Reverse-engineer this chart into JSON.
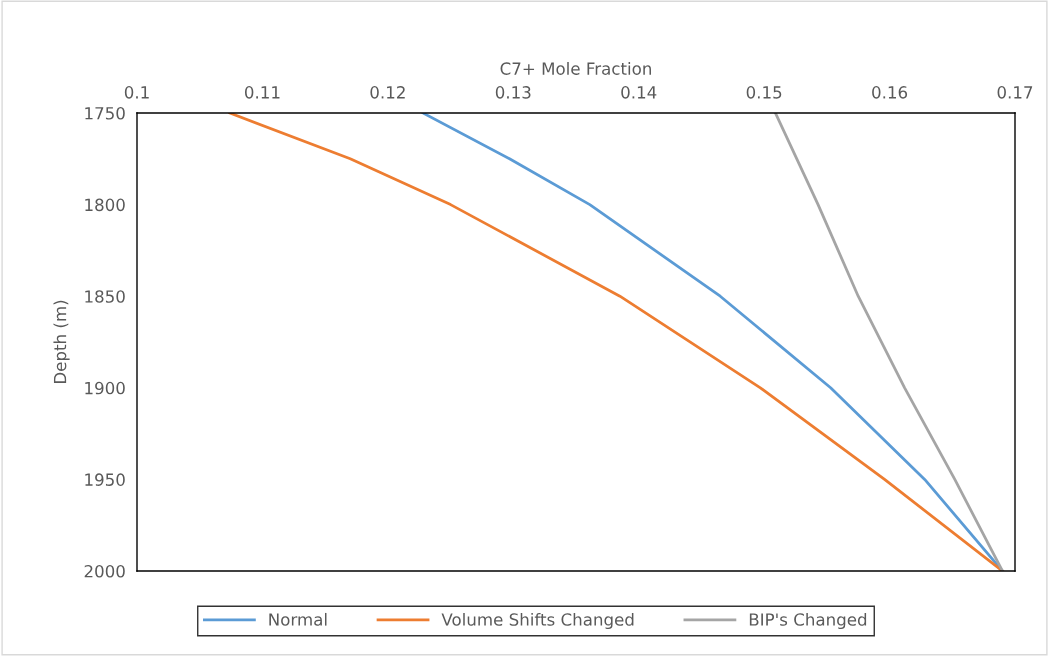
{
  "chart_data": {
    "type": "line",
    "xlabel": "C7+ Mole Fraction",
    "ylabel": "Depth (m)",
    "xlim": [
      0.1,
      0.17
    ],
    "xticks": [
      0.1,
      0.11,
      0.12,
      0.13,
      0.14,
      0.15,
      0.16,
      0.17
    ],
    "ylim": [
      2000,
      1750
    ],
    "yticks": [
      1750,
      1800,
      1850,
      1900,
      1950,
      2000
    ],
    "grid": false,
    "legend": "bottom",
    "marker": "none",
    "line_style": "solid",
    "series": [
      {
        "name": "Normal",
        "color": "#5b9bd5",
        "x": [
          0.1228,
          0.1297,
          0.1361,
          0.1465,
          0.1553,
          0.1628,
          0.169
        ],
        "values": [
          1750,
          1775,
          1800,
          1850,
          1900,
          1950,
          2000
        ]
      },
      {
        "name": "Volume Shifts Changed",
        "color": "#ed7d31",
        "x": [
          0.1074,
          0.117,
          0.125,
          0.1385,
          0.1497,
          0.1596,
          0.169
        ],
        "values": [
          1750,
          1775,
          1800,
          1850,
          1900,
          1950,
          2000
        ]
      },
      {
        "name": "BIP's Changed",
        "color": "#a5a5a5",
        "x": [
          0.1509,
          0.1543,
          0.1575,
          0.1612,
          0.1652,
          0.169
        ],
        "values": [
          1750,
          1800,
          1850,
          1900,
          1950,
          2000
        ]
      }
    ]
  }
}
